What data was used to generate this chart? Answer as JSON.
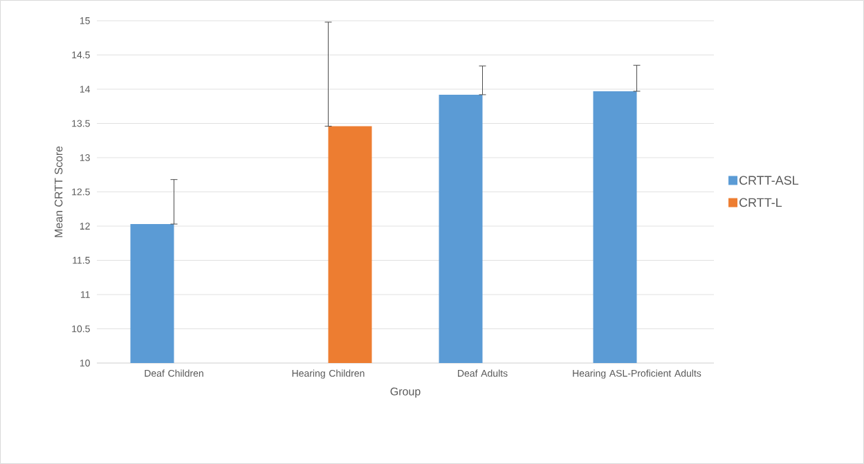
{
  "chart_data": {
    "type": "bar",
    "xlabel": "Group",
    "ylabel": "Mean CRTT Score",
    "categories": [
      "Deaf Children",
      "Hearing Children",
      "Deaf Adults",
      "Hearing ASL-Proficient Adults"
    ],
    "series": [
      {
        "name": "CRTT-ASL",
        "color": "#5b9bd5",
        "values": [
          12.03,
          null,
          13.92,
          13.97
        ],
        "errors": [
          [
            12.03,
            12.68
          ],
          null,
          [
            13.92,
            14.34
          ],
          [
            13.97,
            14.35
          ]
        ]
      },
      {
        "name": "CRTT-L",
        "color": "#ed7d31",
        "values": [
          null,
          13.46,
          null,
          null
        ],
        "errors": [
          null,
          [
            13.46,
            14.98
          ],
          null,
          null
        ]
      }
    ],
    "ylim": [
      10,
      15
    ],
    "yticks": [
      10,
      10.5,
      11,
      11.5,
      12,
      12.5,
      13,
      13.5,
      14,
      14.5,
      15
    ],
    "grid": "y",
    "legend": "right"
  }
}
